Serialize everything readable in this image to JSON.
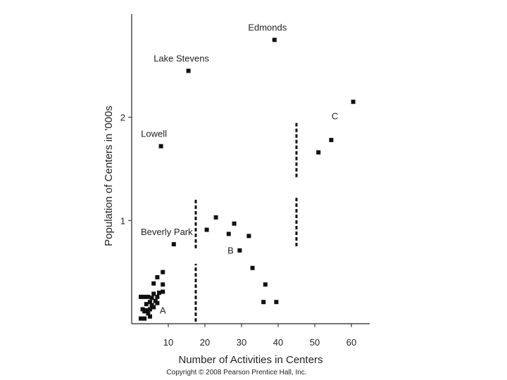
{
  "chart_data": {
    "type": "scatter",
    "xlabel": "Number of Activities in Centers",
    "ylabel": "Population of Centers in '000s",
    "xlim": [
      0,
      65
    ],
    "ylim": [
      0,
      3
    ],
    "xticks": [
      10,
      20,
      30,
      40,
      50,
      60
    ],
    "yticks": [
      1,
      2
    ],
    "grid": false,
    "points": [
      {
        "x": 39,
        "y": 2.75,
        "label": "Edmonds"
      },
      {
        "x": 15.5,
        "y": 2.45,
        "label": "Lake Stevens"
      },
      {
        "x": 8,
        "y": 1.72,
        "label": "Lowell"
      },
      {
        "x": 11.5,
        "y": 0.77,
        "label": "Beverly Park"
      },
      {
        "x": 60.5,
        "y": 2.15
      },
      {
        "x": 54.5,
        "y": 1.78
      },
      {
        "x": 51,
        "y": 1.66
      },
      {
        "x": 23,
        "y": 1.03
      },
      {
        "x": 20.5,
        "y": 0.91
      },
      {
        "x": 28,
        "y": 0.97
      },
      {
        "x": 26.5,
        "y": 0.87
      },
      {
        "x": 32,
        "y": 0.85
      },
      {
        "x": 29.5,
        "y": 0.71
      },
      {
        "x": 33,
        "y": 0.54
      },
      {
        "x": 36.5,
        "y": 0.38
      },
      {
        "x": 36,
        "y": 0.21
      },
      {
        "x": 39.5,
        "y": 0.21
      },
      {
        "x": 8.5,
        "y": 0.5
      },
      {
        "x": 7,
        "y": 0.45
      },
      {
        "x": 6,
        "y": 0.39
      },
      {
        "x": 8.5,
        "y": 0.38
      },
      {
        "x": 7.5,
        "y": 0.3
      },
      {
        "x": 8.5,
        "y": 0.31
      },
      {
        "x": 2.5,
        "y": 0.26
      },
      {
        "x": 3.5,
        "y": 0.26
      },
      {
        "x": 4.5,
        "y": 0.26
      },
      {
        "x": 5.5,
        "y": 0.25
      },
      {
        "x": 6,
        "y": 0.29
      },
      {
        "x": 7,
        "y": 0.26
      },
      {
        "x": 6.5,
        "y": 0.22
      },
      {
        "x": 5,
        "y": 0.21
      },
      {
        "x": 4,
        "y": 0.19
      },
      {
        "x": 5.5,
        "y": 0.18
      },
      {
        "x": 7,
        "y": 0.2
      },
      {
        "x": 3,
        "y": 0.14
      },
      {
        "x": 4,
        "y": 0.13
      },
      {
        "x": 5,
        "y": 0.14
      },
      {
        "x": 6,
        "y": 0.16
      },
      {
        "x": 2.5,
        "y": 0.05
      },
      {
        "x": 3.5,
        "y": 0.05
      },
      {
        "x": 5,
        "y": 0.07
      },
      {
        "x": 4.5,
        "y": 0.1
      },
      {
        "x": 3.5,
        "y": 0.12
      }
    ],
    "group_labels": [
      {
        "text": "A",
        "x": 8.5,
        "y": 0.1
      },
      {
        "text": "B",
        "x": 27,
        "y": 0.68
      },
      {
        "text": "C",
        "x": 55.5,
        "y": 1.98
      }
    ],
    "dividers": [
      {
        "x": 17.5,
        "y_ranges": [
          [
            0.02,
            0.58
          ],
          [
            0.73,
            1.22
          ]
        ]
      },
      {
        "x": 45,
        "y_ranges": [
          [
            0.75,
            1.22
          ],
          [
            1.42,
            1.95
          ]
        ]
      }
    ]
  },
  "footer": {
    "copyright": "Copyright © 2008 Pearson Prentice Hall, Inc."
  }
}
